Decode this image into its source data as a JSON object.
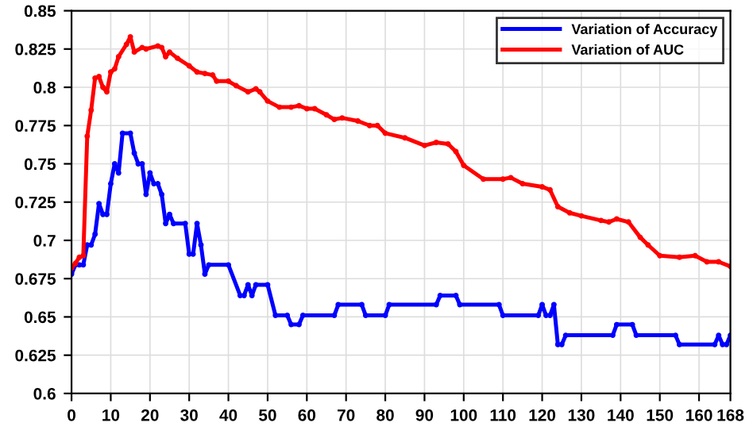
{
  "chart_data": {
    "type": "line",
    "xlim": [
      0,
      168
    ],
    "ylim": [
      0.6,
      0.85
    ],
    "xticks": [
      0,
      10,
      20,
      30,
      40,
      50,
      60,
      70,
      80,
      90,
      100,
      110,
      120,
      130,
      140,
      150,
      160,
      168
    ],
    "yticks": [
      0.6,
      0.625,
      0.65,
      0.675,
      0.7,
      0.725,
      0.75,
      0.775,
      0.8,
      0.825,
      0.85
    ],
    "grid": true,
    "legend": "top right",
    "marker": "circle",
    "line_style": "solid",
    "series": [
      {
        "name": "Variation of Accuracy",
        "color": "#0000ff",
        "x": [
          0,
          1,
          2,
          3,
          4,
          5,
          6,
          7,
          8,
          9,
          10,
          11,
          12,
          13,
          15,
          16,
          17,
          18,
          19,
          20,
          21,
          22,
          23,
          24,
          25,
          26,
          29,
          30,
          31,
          32,
          33,
          34,
          35,
          40,
          43,
          44,
          45,
          46,
          47,
          50,
          52,
          55,
          56,
          58,
          59,
          67,
          68,
          74,
          75,
          80,
          81,
          93,
          94,
          98,
          99,
          109,
          110,
          119,
          120,
          121,
          122,
          123,
          124,
          125,
          126,
          138,
          139,
          143,
          144,
          154,
          155,
          164,
          165,
          166,
          167,
          168
        ],
        "values": [
          0.678,
          0.684,
          0.684,
          0.684,
          0.697,
          0.697,
          0.704,
          0.724,
          0.717,
          0.717,
          0.737,
          0.75,
          0.744,
          0.77,
          0.77,
          0.757,
          0.75,
          0.75,
          0.73,
          0.744,
          0.737,
          0.737,
          0.73,
          0.711,
          0.717,
          0.711,
          0.711,
          0.691,
          0.691,
          0.711,
          0.697,
          0.678,
          0.684,
          0.684,
          0.664,
          0.664,
          0.671,
          0.664,
          0.671,
          0.671,
          0.651,
          0.651,
          0.645,
          0.645,
          0.651,
          0.651,
          0.658,
          0.658,
          0.651,
          0.651,
          0.658,
          0.658,
          0.664,
          0.664,
          0.658,
          0.658,
          0.651,
          0.651,
          0.658,
          0.651,
          0.651,
          0.658,
          0.632,
          0.632,
          0.638,
          0.638,
          0.645,
          0.645,
          0.638,
          0.638,
          0.632,
          0.632,
          0.638,
          0.632,
          0.632,
          0.638
        ]
      },
      {
        "name": "Variation of AUC",
        "color": "#ff0000",
        "x": [
          0,
          1,
          2,
          3,
          4,
          5,
          6,
          7,
          8,
          9,
          10,
          11,
          12,
          14,
          15,
          16,
          18,
          19,
          22,
          23,
          24,
          25,
          27,
          30,
          32,
          34,
          36,
          37,
          40,
          42,
          45,
          47,
          48,
          50,
          53,
          56,
          58,
          60,
          62,
          65,
          67,
          69,
          73,
          76,
          78,
          80,
          85,
          90,
          93,
          96,
          98,
          100,
          105,
          110,
          112,
          115,
          120,
          122,
          124,
          127,
          130,
          135,
          137,
          139,
          142,
          145,
          147,
          150,
          155,
          159,
          162,
          165,
          168
        ],
        "values": [
          0.682,
          0.685,
          0.689,
          0.69,
          0.768,
          0.785,
          0.806,
          0.807,
          0.8,
          0.797,
          0.81,
          0.812,
          0.82,
          0.828,
          0.833,
          0.823,
          0.826,
          0.825,
          0.827,
          0.826,
          0.82,
          0.823,
          0.819,
          0.814,
          0.81,
          0.809,
          0.808,
          0.804,
          0.804,
          0.801,
          0.797,
          0.799,
          0.797,
          0.791,
          0.787,
          0.787,
          0.788,
          0.786,
          0.786,
          0.782,
          0.779,
          0.78,
          0.778,
          0.775,
          0.775,
          0.77,
          0.767,
          0.762,
          0.764,
          0.763,
          0.758,
          0.749,
          0.74,
          0.74,
          0.741,
          0.737,
          0.735,
          0.733,
          0.722,
          0.718,
          0.716,
          0.713,
          0.712,
          0.714,
          0.712,
          0.702,
          0.697,
          0.69,
          0.689,
          0.69,
          0.686,
          0.686,
          0.683
        ]
      }
    ]
  }
}
